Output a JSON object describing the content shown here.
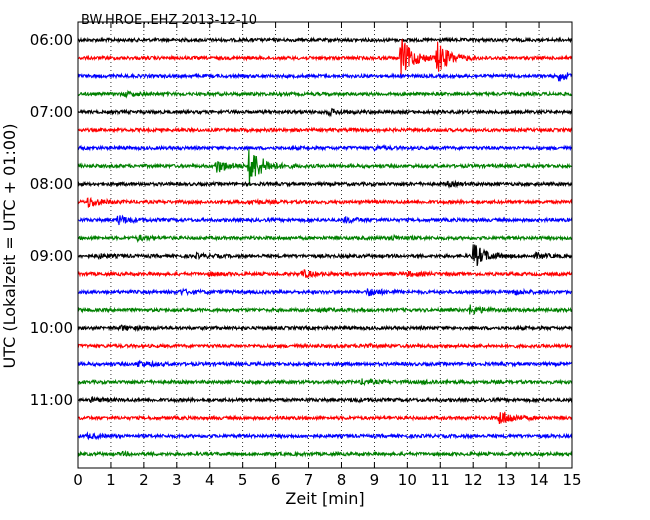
{
  "chart_data": {
    "type": "line",
    "title": "BW.HROE..EHZ 2013-12-10",
    "xlabel": "Zeit  [min]",
    "ylabel": "UTC (Lokalzeit = UTC + 01:00)",
    "xlim": [
      0,
      15
    ],
    "x_ticks": [
      0,
      1,
      2,
      3,
      4,
      5,
      6,
      7,
      8,
      9,
      10,
      11,
      12,
      13,
      14,
      15
    ],
    "x_tick_labels": [
      "0",
      "1",
      "2",
      "3",
      "4",
      "5",
      "6",
      "7",
      "8",
      "9",
      "10",
      "11",
      "12",
      "13",
      "14",
      "15"
    ],
    "y_tick_labels": [
      "06:00",
      "07:00",
      "08:00",
      "09:00",
      "10:00",
      "11:00"
    ],
    "y_tick_trace_index": [
      0,
      4,
      8,
      12,
      16,
      20
    ],
    "grid": "vertical dotted",
    "trace_colors": [
      "#000000",
      "#ff0000",
      "#0000ff",
      "#008000"
    ],
    "traces": [
      {
        "start": "06:00",
        "events": []
      },
      {
        "start": "06:15",
        "events": [
          [
            9.8,
            9.0
          ],
          [
            10.9,
            7.0
          ]
        ]
      },
      {
        "start": "06:30",
        "events": [
          [
            14.6,
            2.0
          ]
        ]
      },
      {
        "start": "06:45",
        "events": [
          [
            1.4,
            0.8
          ]
        ]
      },
      {
        "start": "07:00",
        "events": [
          [
            7.6,
            1.2
          ]
        ]
      },
      {
        "start": "07:15",
        "events": []
      },
      {
        "start": "07:30",
        "events": [
          [
            9.0,
            0.6
          ]
        ]
      },
      {
        "start": "07:45",
        "events": [
          [
            4.2,
            3.0
          ],
          [
            5.2,
            9.0
          ]
        ]
      },
      {
        "start": "08:00",
        "events": [
          [
            11.2,
            0.8
          ]
        ]
      },
      {
        "start": "08:15",
        "events": [
          [
            0.3,
            2.2
          ],
          [
            5.2,
            0.7
          ],
          [
            15.0,
            0.6
          ]
        ]
      },
      {
        "start": "08:30",
        "events": [
          [
            1.2,
            2.0
          ],
          [
            8.1,
            1.1
          ]
        ]
      },
      {
        "start": "08:45",
        "events": [
          [
            1.8,
            1.0
          ],
          [
            9.5,
            0.9
          ]
        ]
      },
      {
        "start": "09:00",
        "events": [
          [
            12.0,
            5.5
          ],
          [
            3.6,
            0.8
          ],
          [
            13.9,
            1.0
          ],
          [
            0.6,
            0.8
          ]
        ]
      },
      {
        "start": "09:15",
        "events": [
          [
            6.8,
            1.6
          ],
          [
            4.0,
            0.6
          ],
          [
            10.0,
            0.8
          ]
        ]
      },
      {
        "start": "09:30",
        "events": [
          [
            8.8,
            1.6
          ],
          [
            3.1,
            1.0
          ],
          [
            13.2,
            1.0
          ]
        ]
      },
      {
        "start": "09:45",
        "events": [
          [
            11.9,
            2.0
          ],
          [
            7.3,
            0.7
          ]
        ]
      },
      {
        "start": "10:00",
        "events": [
          [
            1.3,
            0.9
          ]
        ]
      },
      {
        "start": "10:15",
        "events": [
          [
            8.6,
            0.6
          ]
        ]
      },
      {
        "start": "10:30",
        "events": [
          [
            1.8,
            1.4
          ]
        ]
      },
      {
        "start": "10:45",
        "events": [
          [
            8.6,
            1.0
          ],
          [
            10.5,
            0.7
          ]
        ]
      },
      {
        "start": "11:00",
        "events": [
          [
            0.4,
            0.8
          ],
          [
            8.3,
            0.6
          ]
        ]
      },
      {
        "start": "11:15",
        "events": [
          [
            12.8,
            3.5
          ]
        ]
      },
      {
        "start": "11:30",
        "events": [
          [
            0.3,
            0.9
          ]
        ]
      },
      {
        "start": "11:45",
        "events": [
          [
            1.3,
            0.5
          ]
        ]
      }
    ]
  }
}
